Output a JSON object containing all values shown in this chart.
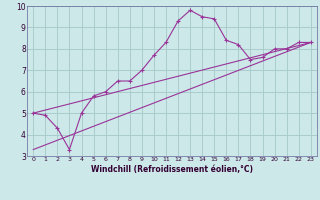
{
  "title": "",
  "xlabel": "Windchill (Refroidissement éolien,°C)",
  "ylabel": "",
  "xlim": [
    -0.5,
    23.5
  ],
  "ylim": [
    3,
    10
  ],
  "yticks": [
    3,
    4,
    5,
    6,
    7,
    8,
    9,
    10
  ],
  "xticks": [
    0,
    1,
    2,
    3,
    4,
    5,
    6,
    7,
    8,
    9,
    10,
    11,
    12,
    13,
    14,
    15,
    16,
    17,
    18,
    19,
    20,
    21,
    22,
    23
  ],
  "background_color": "#cce8e8",
  "grid_color": "#aacccc",
  "line_color": "#993399",
  "line1_x": [
    0,
    1,
    2,
    3,
    4,
    5,
    6,
    7,
    8,
    9,
    10,
    11,
    12,
    13,
    14,
    15,
    16,
    17,
    18,
    19,
    20,
    21,
    22,
    23
  ],
  "line1_y": [
    5.0,
    4.9,
    4.3,
    3.3,
    5.0,
    5.8,
    6.0,
    6.5,
    6.5,
    7.0,
    7.7,
    8.3,
    9.3,
    9.8,
    9.5,
    9.4,
    8.4,
    8.2,
    7.5,
    7.6,
    8.0,
    8.0,
    8.3,
    8.3
  ],
  "line2_x": [
    0,
    23
  ],
  "line2_y": [
    5.0,
    8.3
  ],
  "line3_x": [
    0,
    23
  ],
  "line3_y": [
    3.3,
    8.3
  ]
}
